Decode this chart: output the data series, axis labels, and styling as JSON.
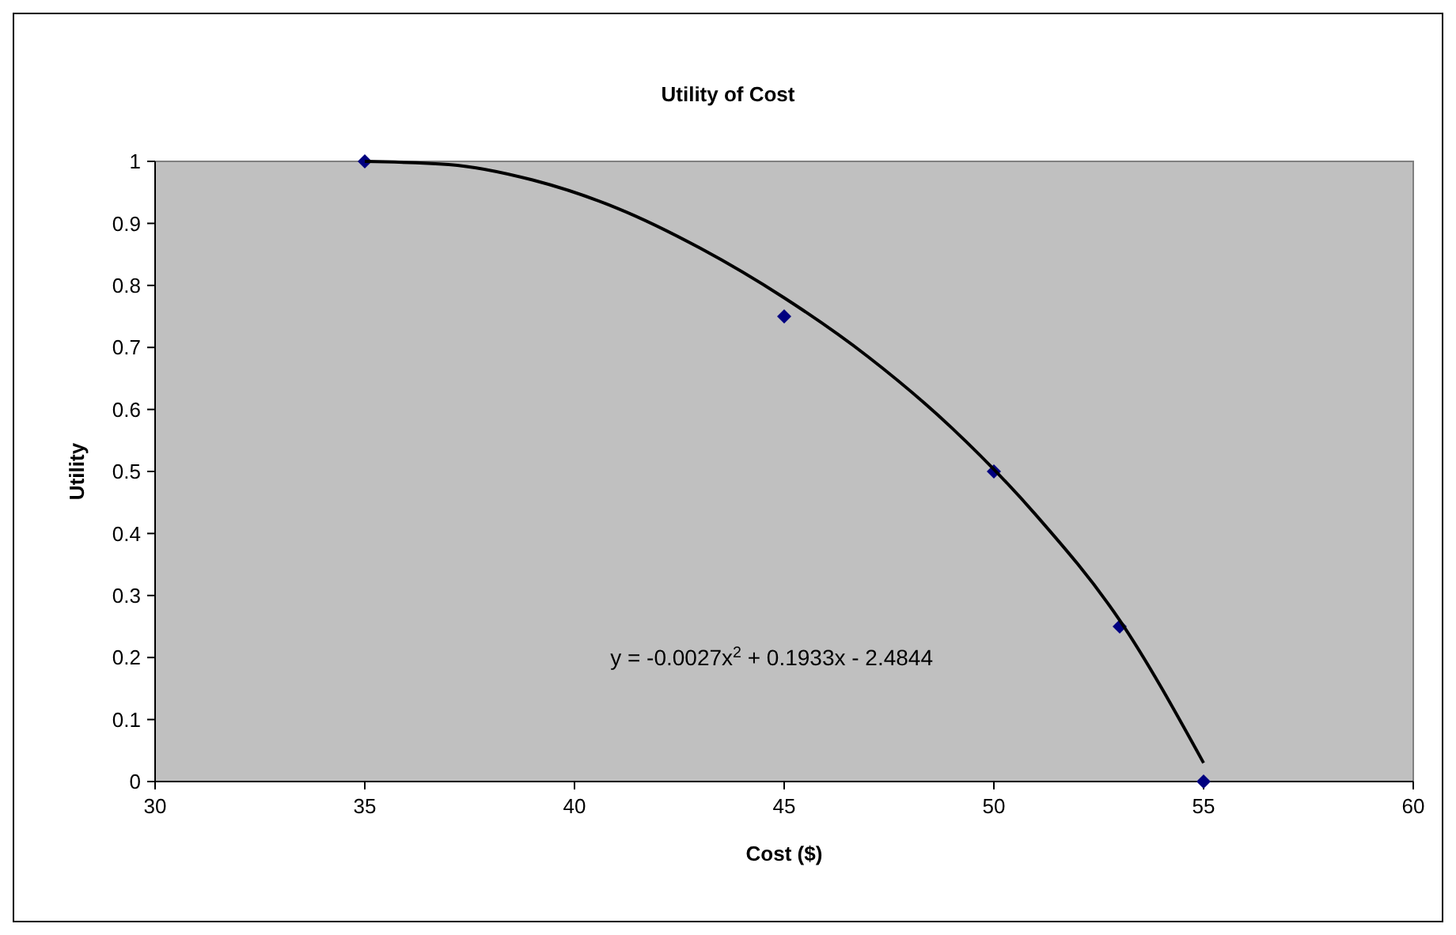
{
  "chart_data": {
    "type": "scatter",
    "title": "Utility of Cost",
    "xlabel": "Cost ($)",
    "ylabel": "Utility",
    "xlim": [
      30,
      60
    ],
    "xticks": [
      30,
      35,
      40,
      45,
      50,
      55,
      60
    ],
    "ylim": [
      0,
      1
    ],
    "yticks": [
      0,
      0.1,
      0.2,
      0.3,
      0.4,
      0.5,
      0.6,
      0.7,
      0.8,
      0.9,
      1
    ],
    "grid": false,
    "series": [
      {
        "color": "#000080",
        "marker": "diamond",
        "x": [
          35,
          45,
          50,
          53,
          55
        ],
        "values": [
          1,
          0.75,
          0.5,
          0.25,
          0
        ]
      },
      {
        "type": "line",
        "color": "#000000",
        "marker": "none",
        "line_style": "solid",
        "x": [
          35,
          37,
          39,
          41,
          43,
          45,
          47,
          49,
          51,
          53,
          55
        ],
        "values": [
          1,
          0.995,
          0.97,
          0.925,
          0.86,
          0.78,
          0.685,
          0.57,
          0.43,
          0.26,
          0.03
        ]
      }
    ],
    "annotations": [
      "y = -0.0027x$^{2}$ + 0.1933x - 2.4844"
    ]
  }
}
